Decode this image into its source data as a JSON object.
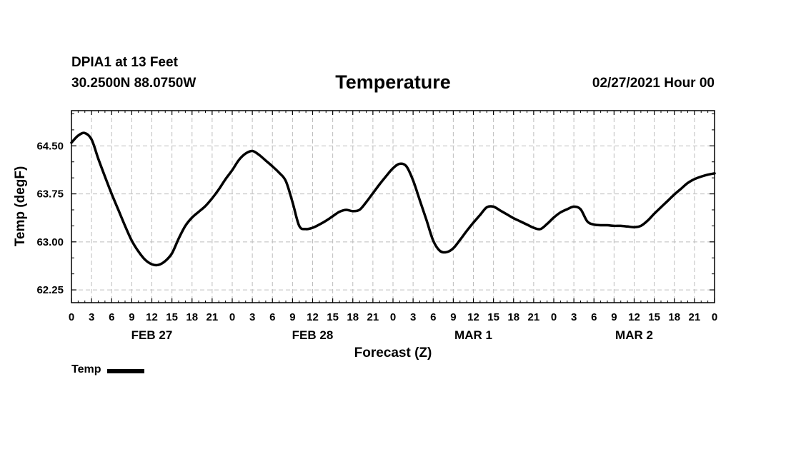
{
  "header": {
    "station": "DPIA1 at 13 Feet",
    "coords": "30.2500N 88.0750W",
    "title": "Temperature",
    "datetime": "02/27/2021 Hour 00"
  },
  "chart_data": {
    "type": "line",
    "title": "Temperature",
    "xlabel": "Forecast (Z)",
    "ylabel": "Temp (degF)",
    "x_unit": "forecast hour",
    "xlim": [
      0,
      96
    ],
    "ylim": [
      62.05,
      65.05
    ],
    "yticks": [
      62.25,
      63.0,
      63.75,
      64.5
    ],
    "ytick_labels": [
      "62.25",
      "63.00",
      "63.75",
      "64.50"
    ],
    "xticks": [
      0,
      3,
      6,
      9,
      12,
      15,
      18,
      21,
      24,
      27,
      30,
      33,
      36,
      39,
      42,
      45,
      48,
      51,
      54,
      57,
      60,
      63,
      66,
      69,
      72,
      75,
      78,
      81,
      84,
      87,
      90,
      93,
      96
    ],
    "xtick_labels": [
      "0",
      "3",
      "6",
      "9",
      "12",
      "15",
      "18",
      "21",
      "0",
      "3",
      "6",
      "9",
      "12",
      "15",
      "18",
      "21",
      "0",
      "3",
      "6",
      "9",
      "12",
      "15",
      "18",
      "21",
      "0",
      "3",
      "6",
      "9",
      "12",
      "15",
      "18",
      "21",
      "0"
    ],
    "day_labels": [
      {
        "x": 12,
        "label": "FEB 27"
      },
      {
        "x": 36,
        "label": "FEB 28"
      },
      {
        "x": 60,
        "label": "MAR 1"
      },
      {
        "x": 84,
        "label": "MAR 2"
      }
    ],
    "grid": true,
    "legend_position": "bottom-left",
    "series": [
      {
        "name": "Temp",
        "color": "#000000",
        "x": [
          0,
          1,
          2,
          3,
          4,
          5,
          6,
          7,
          8,
          9,
          10,
          11,
          12,
          13,
          14,
          15,
          16,
          17,
          18,
          19,
          20,
          21,
          22,
          23,
          24,
          25,
          26,
          27,
          28,
          29,
          30,
          31,
          32,
          33,
          34,
          35,
          36,
          37,
          38,
          39,
          40,
          41,
          42,
          43,
          44,
          45,
          46,
          47,
          48,
          49,
          50,
          51,
          52,
          53,
          54,
          55,
          56,
          57,
          58,
          59,
          60,
          61,
          62,
          63,
          64,
          65,
          66,
          67,
          68,
          69,
          70,
          71,
          72,
          73,
          74,
          75,
          76,
          77,
          78,
          79,
          80,
          81,
          82,
          83,
          84,
          85,
          86,
          87,
          88,
          89,
          90,
          91,
          92,
          93,
          94,
          95,
          96
        ],
        "values": [
          64.55,
          64.66,
          64.7,
          64.6,
          64.3,
          64.02,
          63.75,
          63.5,
          63.25,
          63.02,
          62.85,
          62.72,
          62.65,
          62.64,
          62.7,
          62.82,
          63.05,
          63.25,
          63.38,
          63.47,
          63.56,
          63.68,
          63.82,
          63.98,
          64.12,
          64.28,
          64.38,
          64.42,
          64.36,
          64.27,
          64.18,
          64.08,
          63.95,
          63.62,
          63.25,
          63.2,
          63.22,
          63.27,
          63.33,
          63.4,
          63.47,
          63.5,
          63.48,
          63.5,
          63.62,
          63.76,
          63.9,
          64.03,
          64.15,
          64.22,
          64.18,
          63.96,
          63.65,
          63.34,
          63.02,
          62.86,
          62.84,
          62.9,
          63.03,
          63.17,
          63.3,
          63.42,
          63.54,
          63.55,
          63.49,
          63.43,
          63.37,
          63.32,
          63.27,
          63.22,
          63.2,
          63.28,
          63.38,
          63.46,
          63.51,
          63.55,
          63.51,
          63.32,
          63.27,
          63.26,
          63.26,
          63.25,
          63.25,
          63.24,
          63.23,
          63.25,
          63.33,
          63.44,
          63.54,
          63.64,
          63.74,
          63.83,
          63.92,
          63.98,
          64.02,
          64.05,
          64.07
        ]
      }
    ]
  },
  "legend": {
    "label": "Temp",
    "color": "#000000"
  }
}
